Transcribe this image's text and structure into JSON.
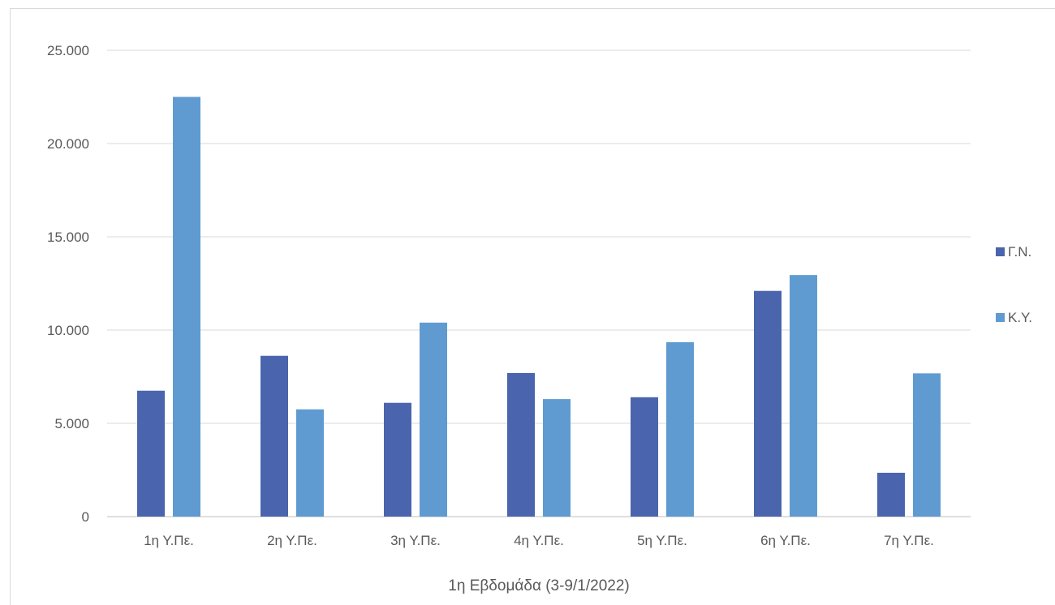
{
  "chart_data": {
    "type": "bar",
    "title": "",
    "xlabel": "1η Εβδομάδα (3-9/1/2022)",
    "ylabel": "",
    "ylim": [
      0,
      25000
    ],
    "y_ticks": [
      0,
      5000,
      10000,
      15000,
      20000,
      25000
    ],
    "y_tick_labels": [
      "0",
      "5.000",
      "10.000",
      "15.000",
      "20.000",
      "25.000"
    ],
    "grid": true,
    "legend_position": "right",
    "categories": [
      "1η Υ.Πε.",
      "2η Υ.Πε.",
      "3η Υ.Πε.",
      "4η Υ.Πε.",
      "5η Υ.Πε.",
      "6η Υ.Πε.",
      "7η Υ.Πε."
    ],
    "series": [
      {
        "name": "Γ.Ν.",
        "color": "#4a65ad",
        "values": [
          6750,
          8620,
          6100,
          7700,
          6400,
          12100,
          2350
        ]
      },
      {
        "name": "Κ.Υ.",
        "color": "#5f9bd1",
        "values": [
          22500,
          5750,
          10400,
          6300,
          9350,
          12950,
          7680
        ]
      }
    ]
  }
}
